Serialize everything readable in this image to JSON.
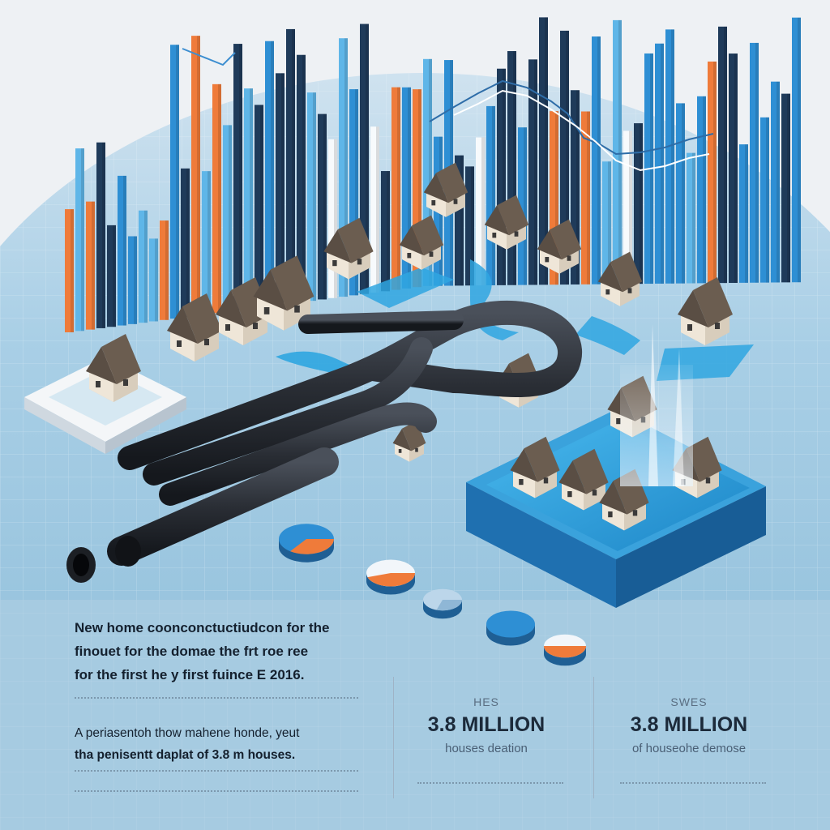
{
  "colors": {
    "background": "#eef1f4",
    "board": "#8fc0dc",
    "bar_blue": "#2e8fd4",
    "bar_light_blue": "#5fb6e8",
    "bar_navy": "#1f3b5a",
    "bar_orange": "#ef7b3a",
    "bar_white": "#f7fafc",
    "pipe": "#2b2f36",
    "pool": "#2fa6e0",
    "house_roof": "#5a4e44",
    "house_wall": "#efe6d8"
  },
  "headline": {
    "line1": "New home coonconctuctiudcon for the",
    "line2": "finouet for the domae the frt roe ree",
    "line3": "for the first he y first fuince E 2016."
  },
  "body": {
    "line1": "A periasentoh thow mahene honde, yeut",
    "line2": "tha penisentt daplat of 3.8 m houses."
  },
  "stats": [
    {
      "label": "HES",
      "value": "3.8 MILLION",
      "caption": "houses deation"
    },
    {
      "label": "SWES",
      "value": "3.8 MILLION",
      "caption": "of houseohe demose"
    }
  ],
  "icons": {
    "houses": "house-icon",
    "pipes": "pipe-icon",
    "pies": "pie-chart-icon",
    "water": "water-fountain-icon"
  }
}
